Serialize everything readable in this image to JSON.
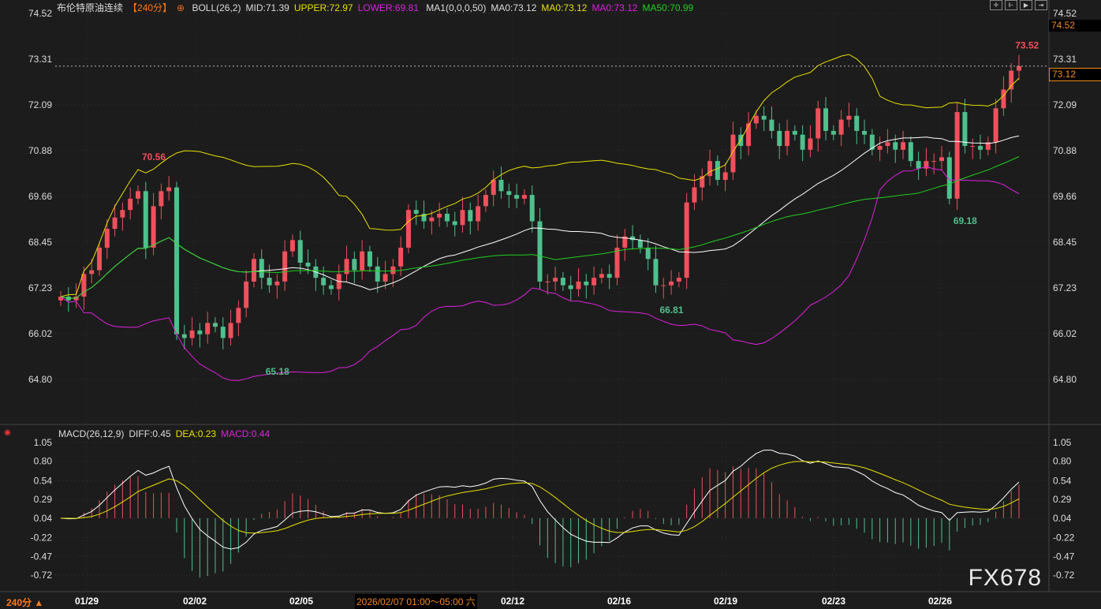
{
  "header": {
    "title": "布伦特原油连续",
    "period": "【240分】",
    "boll": "BOLL(26,2)",
    "mid": "MID:71.39",
    "upper": "UPPER:72.97",
    "lower": "LOWER:69.81",
    "ma": "MA1(0,0,0,50)",
    "ma0a": "MA0:73.12",
    "ma0b": "MA0:73.12",
    "ma0c": "MA0:73.12",
    "ma50": "MA50:70.99"
  },
  "macd_header": {
    "label": "MACD(26,12,9)",
    "diff": "DIFF:0.45",
    "dea": "DEA:0.23",
    "macd": "MACD:0.44"
  },
  "current_price": "73.12",
  "top_price": "74.52",
  "timeframe": "240分 ▲",
  "tooltip": "2026/02/07 01:00～05:00 六",
  "watermark": "FX678",
  "colors": {
    "up": "#f0505c",
    "down": "#4fc08d",
    "boll_mid": "#ffffff",
    "boll_upper": "#e8e000",
    "boll_lower": "#e020e0",
    "ma50": "#20d020",
    "accent": "#f08a1e"
  },
  "chart_data": [
    {
      "type": "candlestick",
      "title": "布伦特原油连续 240分",
      "y_ticks": [
        "74.52",
        "73.31",
        "72.09",
        "70.88",
        "69.66",
        "68.45",
        "67.23",
        "66.02",
        "64.80"
      ],
      "ylim": [
        64.8,
        74.52
      ],
      "x_ticks": [
        "01/29",
        "02/02",
        "02/05",
        "02/12",
        "02/16",
        "02/19",
        "02/23",
        "02/26"
      ],
      "annotations": [
        {
          "label": "70.56",
          "type": "high"
        },
        {
          "label": "65.18",
          "type": "low"
        },
        {
          "label": "66.81",
          "type": "low"
        },
        {
          "label": "69.18",
          "type": "low"
        },
        {
          "label": "73.52",
          "type": "high"
        }
      ],
      "closes": [
        67.0,
        66.9,
        67.0,
        67.6,
        67.7,
        68.3,
        68.8,
        69.1,
        69.3,
        69.6,
        69.8,
        68.3,
        69.4,
        69.8,
        69.9,
        66.0,
        65.9,
        66.1,
        66.0,
        66.3,
        66.2,
        65.9,
        66.3,
        66.7,
        67.4,
        68.0,
        67.5,
        67.3,
        67.4,
        68.2,
        68.5,
        67.9,
        67.8,
        67.5,
        67.3,
        67.2,
        67.6,
        68.0,
        67.7,
        68.2,
        67.8,
        67.4,
        67.6,
        67.8,
        68.3,
        69.3,
        69.2,
        69.0,
        69.1,
        69.2,
        69.0,
        68.9,
        69.3,
        69.0,
        69.4,
        69.7,
        70.1,
        69.8,
        69.7,
        69.6,
        69.7,
        69.0,
        67.4,
        67.4,
        67.5,
        67.3,
        67.2,
        67.4,
        67.3,
        67.5,
        67.6,
        67.5,
        68.3,
        68.6,
        68.5,
        68.3,
        68.0,
        67.3,
        67.3,
        67.4,
        67.5,
        69.5,
        69.9,
        70.2,
        70.6,
        70.1,
        70.3,
        71.3,
        71.0,
        71.6,
        71.8,
        71.7,
        71.4,
        71.0,
        71.4,
        71.3,
        70.9,
        71.2,
        72.0,
        71.4,
        71.3,
        71.7,
        71.8,
        71.4,
        71.3,
        70.9,
        71.0,
        71.1,
        70.9,
        71.1,
        70.6,
        70.4,
        70.6,
        70.6,
        70.7,
        69.6,
        71.9,
        71.0,
        71.0,
        70.9,
        71.1,
        72.0,
        72.5,
        73.0,
        73.12
      ]
    },
    {
      "type": "macd",
      "y_ticks": [
        "1.05",
        "0.80",
        "0.54",
        "0.29",
        "0.04",
        "-0.22",
        "-0.47",
        "-0.72"
      ],
      "ylim": [
        -0.72,
        1.05
      ]
    }
  ]
}
